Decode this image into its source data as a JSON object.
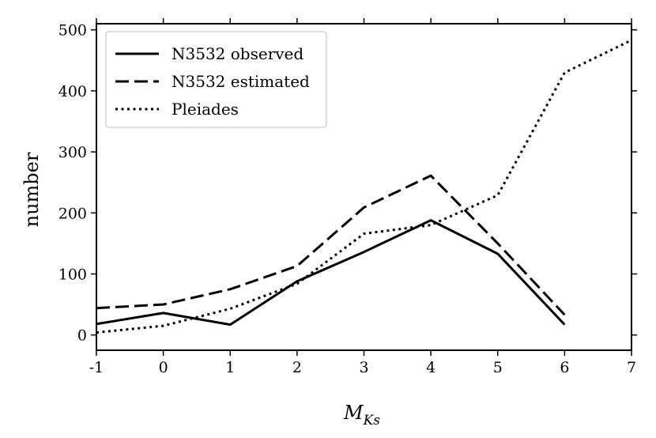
{
  "chart_data": {
    "type": "line",
    "title": "",
    "xlabel_main": "M",
    "xlabel_sub": "Ks",
    "ylabel": "number",
    "xlim": [
      -1,
      7
    ],
    "ylim": [
      -25,
      510
    ],
    "xticks": [
      -1,
      0,
      1,
      2,
      3,
      4,
      5,
      6,
      7
    ],
    "xtick_labels": [
      "-1",
      "0",
      "1",
      "2",
      "3",
      "4",
      "5",
      "6",
      "7"
    ],
    "yticks": [
      0,
      100,
      200,
      300,
      400,
      500
    ],
    "ytick_labels": [
      "0",
      "100",
      "200",
      "300",
      "400",
      "500"
    ],
    "grid": false,
    "legend_position": "top-left",
    "series": [
      {
        "name": "N3532 observed",
        "style": "solid",
        "x": [
          -1,
          0,
          1,
          2,
          3,
          4,
          5,
          6
        ],
        "values": [
          18,
          36,
          17,
          88,
          136,
          188,
          133,
          17
        ]
      },
      {
        "name": "N3532 estimated",
        "style": "dashed",
        "x": [
          -1,
          0,
          1,
          2,
          3,
          4,
          5,
          6
        ],
        "values": [
          44,
          50,
          75,
          113,
          209,
          261,
          150,
          33
        ]
      },
      {
        "name": "Pleiades",
        "style": "dotted",
        "x": [
          -1,
          0,
          1,
          2,
          3,
          4,
          5,
          6,
          7
        ],
        "values": [
          4,
          15,
          43,
          84,
          166,
          180,
          229,
          430,
          483
        ]
      }
    ]
  }
}
